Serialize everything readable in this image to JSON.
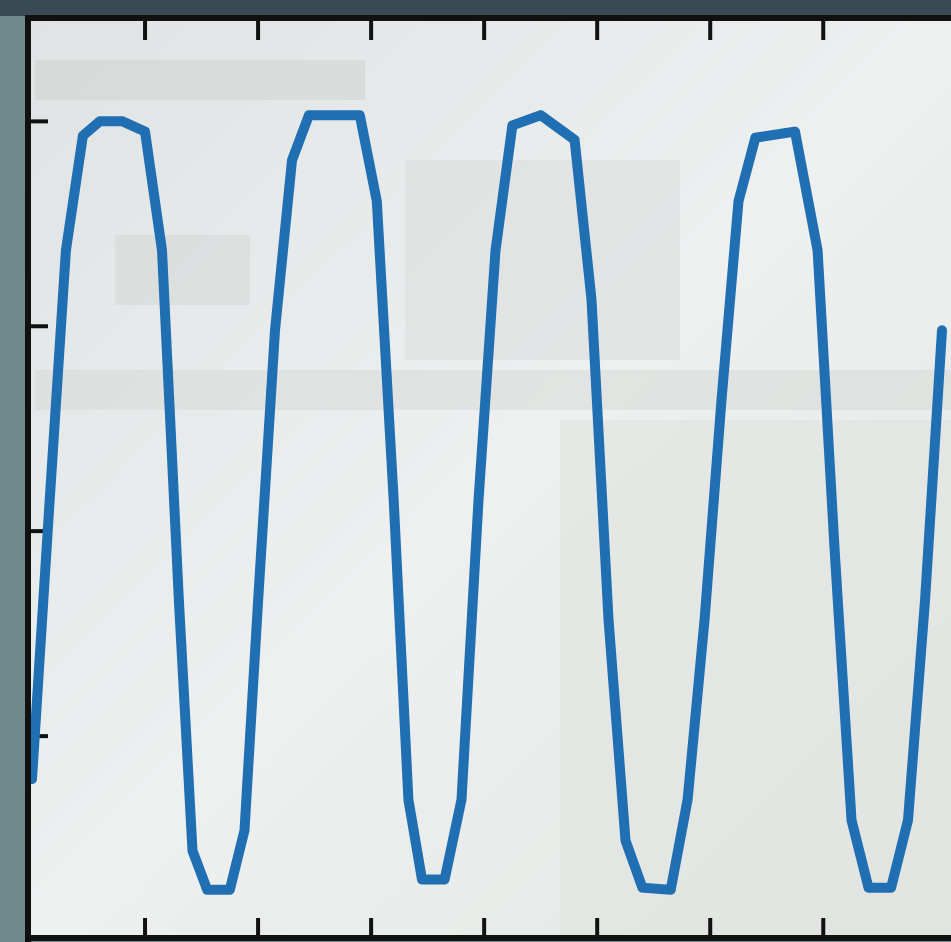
{
  "chart_data": {
    "type": "line",
    "x": [
      0,
      0.15,
      0.3,
      0.45,
      0.6,
      0.8,
      1.0,
      1.15,
      1.3,
      1.42,
      1.55,
      1.75,
      1.88,
      2.0,
      2.15,
      2.3,
      2.45,
      2.9,
      3.05,
      3.2,
      3.33,
      3.45,
      3.65,
      3.8,
      3.95,
      4.1,
      4.25,
      4.5,
      4.8,
      4.95,
      5.1,
      5.25,
      5.4,
      5.65,
      5.8,
      5.95,
      6.1,
      6.25,
      6.4,
      6.75,
      6.95,
      7.1,
      7.25,
      7.4,
      7.6,
      7.75,
      7.9,
      8.05
    ],
    "series": [
      {
        "color": "#1f6fb2",
        "values": [
          0.79,
          2.1,
          3.37,
          3.93,
          4.0,
          4.0,
          3.95,
          3.37,
          1.66,
          0.44,
          0.25,
          0.25,
          0.54,
          1.66,
          2.98,
          3.81,
          4.03,
          4.03,
          3.61,
          2.15,
          0.69,
          0.3,
          0.3,
          0.69,
          2.15,
          3.37,
          3.98,
          4.03,
          3.91,
          3.13,
          1.57,
          0.49,
          0.26,
          0.25,
          0.69,
          1.57,
          2.64,
          3.61,
          3.92,
          3.95,
          3.37,
          1.91,
          0.59,
          0.26,
          0.26,
          0.59,
          1.66,
          2.98
        ]
      }
    ],
    "xlim": [
      0,
      8.13
    ],
    "ylim": [
      0,
      4.47
    ],
    "xticks": [
      1,
      2,
      3,
      4,
      5,
      6,
      7
    ],
    "yticks": [
      1,
      2,
      3,
      4
    ],
    "grid": false
  }
}
